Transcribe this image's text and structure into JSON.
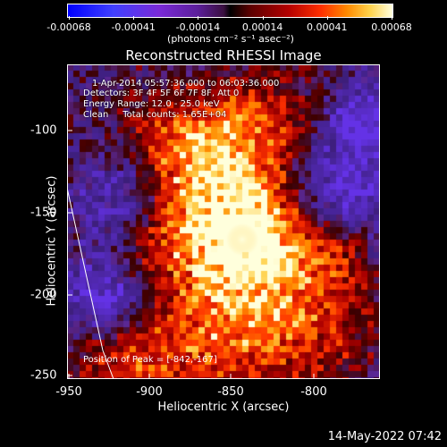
{
  "colorbar": {
    "tick_labels": [
      "-0.00068",
      "-0.00041",
      "-0.00014",
      "0.00014",
      "0.00041",
      "0.00068"
    ],
    "units": "(photons cm⁻² s⁻¹ asec⁻²)"
  },
  "title": "Reconstructed RHESSI Image",
  "info": {
    "line1": "1-Apr-2014 05:57:36.000 to 06:03:36.000",
    "line2": "Detectors: 3F 4F 5F 6F 7F 8F, Att 0",
    "line3": "Energy Range: 12.0 - 25.0 keV",
    "line4": "Clean     Total counts: 1.65E+04"
  },
  "peak": "Position of Peak = [-842,-167]",
  "axes": {
    "xlabel": "Heliocentric X (arcsec)",
    "ylabel": "Heliocentric Y (arcsec)",
    "xticks": [
      "-950",
      "-900",
      "-850",
      "-800"
    ],
    "yticks": [
      "-100",
      "-150",
      "-200",
      "-250"
    ],
    "xlim": [
      -955,
      -820
    ],
    "ylim": [
      -254,
      -65
    ]
  },
  "timestamp": "14-May-2022 07:42",
  "colors": {
    "background": "#000000",
    "limb_line": "#ffffff",
    "peak_color": "#fff7c0",
    "negative": "#5b2aa8"
  }
}
